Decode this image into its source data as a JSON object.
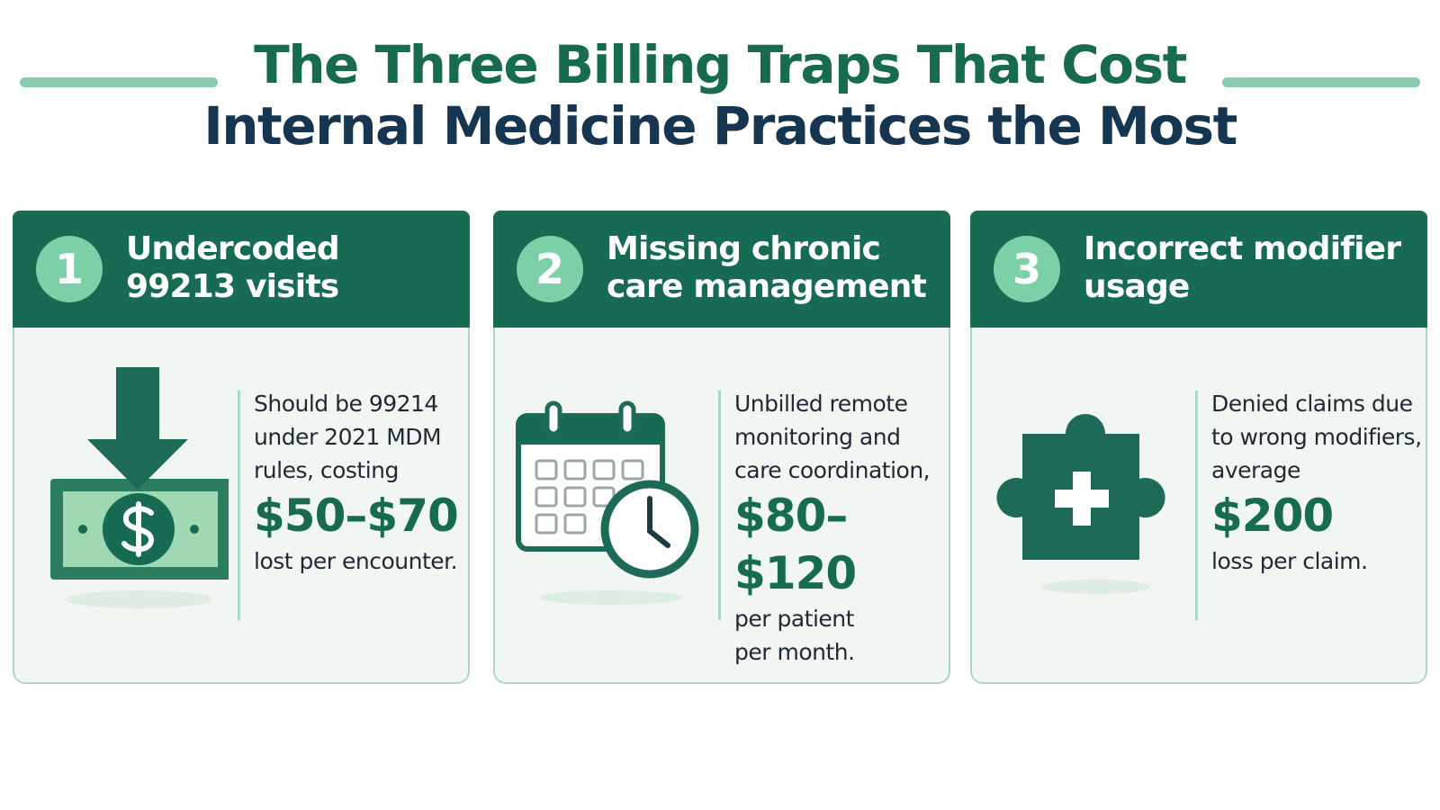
{
  "header": {
    "title_lines": [
      "The Three Billing Traps That Cost",
      "Internal Medicine Practices the Most"
    ]
  },
  "cards": [
    {
      "number": "1",
      "heading_lines": [
        "Undercoded",
        "99213 visits"
      ],
      "description_lines": [
        "Should be 99214",
        "under 2021 MDM",
        "rules, costing"
      ],
      "amount": "$50–$70",
      "tail_lines": [
        "lost per encounter."
      ]
    },
    {
      "number": "2",
      "heading_lines": [
        "Missing chronic",
        "care management"
      ],
      "description_lines": [
        "Unbilled remote",
        "monitoring and",
        "care coordination,"
      ],
      "amount": "$80–$120",
      "tail_lines": [
        "per patient",
        "per month."
      ]
    },
    {
      "number": "3",
      "heading_lines": [
        "Incorrect modifier",
        "usage"
      ],
      "description_lines": [
        "Denied claims due",
        "to wrong modifiers,",
        "average"
      ],
      "amount": "$200",
      "tail_lines": [
        "loss per claim."
      ]
    }
  ]
}
